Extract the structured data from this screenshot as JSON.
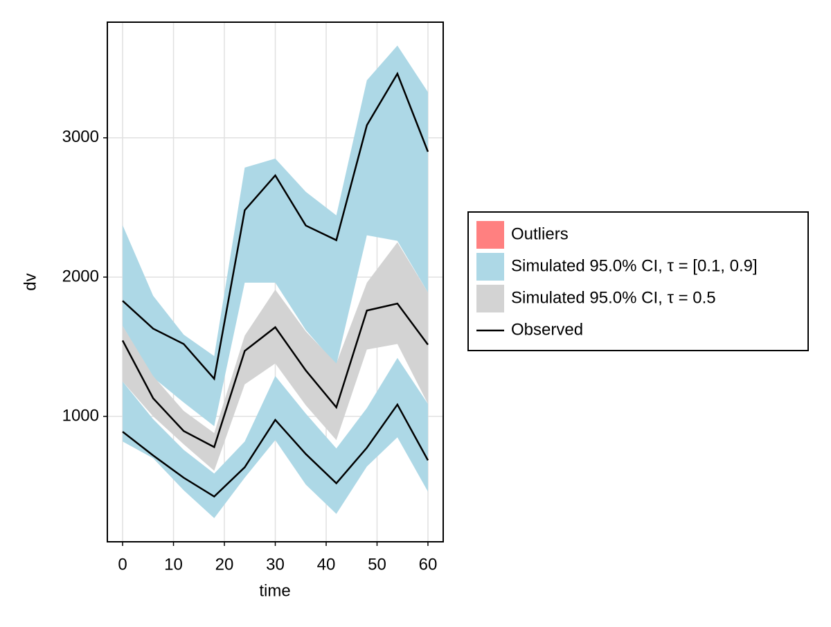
{
  "chart_data": {
    "type": "band",
    "xlabel": "time",
    "ylabel": "dv",
    "x": [
      0,
      6,
      12,
      18,
      24,
      30,
      36,
      42,
      48,
      54,
      60
    ],
    "xlim": [
      -3,
      63
    ],
    "ylim": [
      100,
      3830
    ],
    "xticks": [
      0,
      10,
      20,
      30,
      40,
      50,
      60
    ],
    "yticks": [
      1000,
      2000,
      3000
    ],
    "grid": true,
    "legend_position": "right",
    "legend": [
      {
        "label": "Outliers",
        "color": "#ff8080",
        "kind": "patch"
      },
      {
        "label": "Simulated 95.0% CI, τ = [0.1, 0.9]",
        "color": "#add8e6",
        "kind": "patch"
      },
      {
        "label": "Simulated 95.0% CI, τ = 0.5",
        "color": "#d3d3d3",
        "kind": "patch"
      },
      {
        "label": "Observed",
        "color": "#000000",
        "kind": "line"
      }
    ],
    "bands": [
      {
        "legend": 1,
        "upper": [
          2373,
          1866,
          1587,
          1433,
          2786,
          2851,
          2612,
          2443,
          3413,
          3662,
          3328
        ],
        "lower": [
          1650,
          1280,
          1100,
          930,
          1960,
          1960,
          1620,
          1370,
          2300,
          2260,
          1890
        ]
      },
      {
        "legend": 1,
        "upper": [
          1250,
          980,
          760,
          590,
          820,
          1290,
          1020,
          770,
          1060,
          1420,
          1090
        ],
        "lower": [
          820,
          700,
          470,
          270,
          560,
          830,
          510,
          300,
          640,
          850,
          460
        ]
      },
      {
        "legend": 2,
        "upper": [
          1650,
          1290,
          1040,
          880,
          1580,
          1910,
          1610,
          1380,
          1960,
          2250,
          1890
        ],
        "lower": [
          1250,
          1000,
          800,
          610,
          1230,
          1380,
          1080,
          830,
          1480,
          1520,
          1090
        ]
      }
    ],
    "lines": [
      {
        "legend": 3,
        "values": [
          1830,
          1630,
          1520,
          1270,
          2480,
          2730,
          2370,
          2265,
          3090,
          3460,
          2900
        ]
      },
      {
        "legend": 3,
        "values": [
          1545,
          1130,
          895,
          780,
          1470,
          1640,
          1330,
          1065,
          1760,
          1810,
          1515
        ]
      },
      {
        "legend": 3,
        "values": [
          890,
          720,
          560,
          425,
          635,
          975,
          730,
          520,
          775,
          1085,
          685
        ]
      }
    ]
  }
}
